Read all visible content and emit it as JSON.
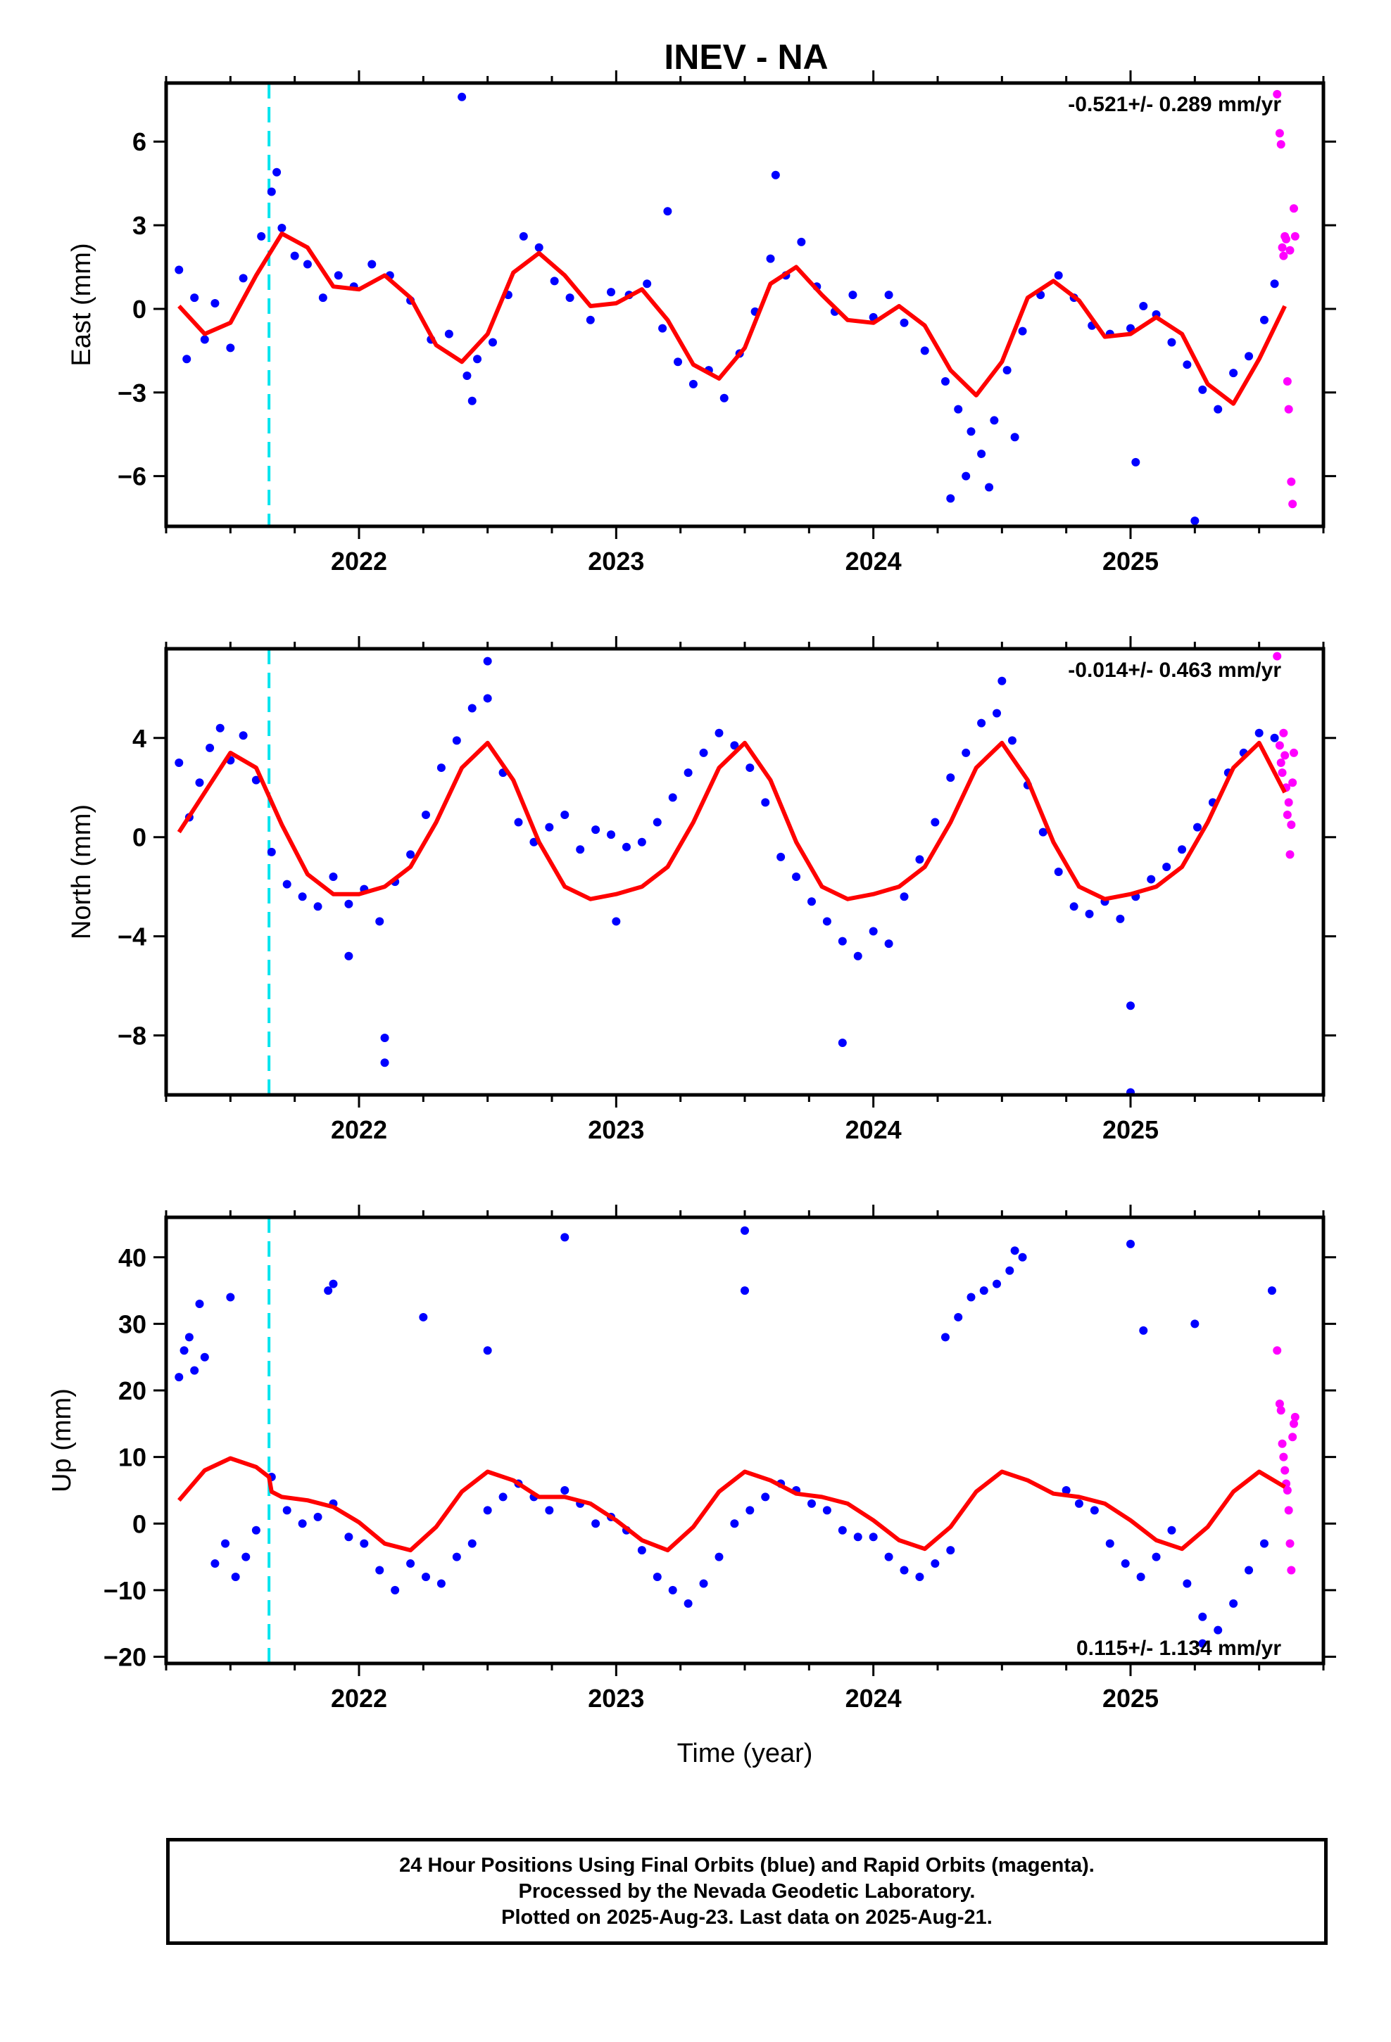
{
  "title": "INEV - NA",
  "footer": {
    "line1": "24 Hour Positions Using Final Orbits (blue) and Rapid Orbits (magenta).",
    "line2": "Processed by the Nevada Geodetic Laboratory.",
    "line3": "Plotted on 2025-Aug-23. Last data on 2025-Aug-21."
  },
  "colors": {
    "final": "#0000ff",
    "rapid": "#ff00ff",
    "model": "#ff0000",
    "event": "#00e5ee"
  },
  "chart_data": [
    {
      "type": "scatter",
      "ylabel": "East (mm)",
      "xlabel": "",
      "rate": "-0.521+/- 0.289 mm/yr",
      "xlim": [
        2021.25,
        2025.75
      ],
      "ylim": [
        -7.8,
        8.1
      ],
      "xticks": [
        2022,
        2023,
        2024,
        2025
      ],
      "yticks": [
        6,
        3,
        0,
        -3,
        -6
      ],
      "event_line": 2021.65,
      "model": {
        "x": [
          2021.3,
          2021.4,
          2021.5,
          2021.6,
          2021.7,
          2021.8,
          2021.9,
          2022.0,
          2022.1,
          2022.2,
          2022.3,
          2022.4,
          2022.5,
          2022.6,
          2022.7,
          2022.8,
          2022.9,
          2023.0,
          2023.1,
          2023.2,
          2023.3,
          2023.4,
          2023.5,
          2023.6,
          2023.7,
          2023.8,
          2023.9,
          2024.0,
          2024.1,
          2024.2,
          2024.3,
          2024.4,
          2024.5,
          2024.6,
          2024.7,
          2024.8,
          2024.9,
          2025.0,
          2025.1,
          2025.2,
          2025.3,
          2025.4,
          2025.5,
          2025.6
        ],
        "y": [
          0.1,
          -0.9,
          -0.5,
          1.2,
          2.7,
          2.2,
          0.8,
          0.7,
          1.2,
          0.4,
          -1.3,
          -1.9,
          -0.9,
          1.3,
          2.0,
          1.2,
          0.1,
          0.2,
          0.7,
          -0.4,
          -2.0,
          -2.5,
          -1.4,
          0.9,
          1.5,
          0.5,
          -0.4,
          -0.5,
          0.1,
          -0.6,
          -2.2,
          -3.1,
          -1.9,
          0.4,
          1.0,
          0.3,
          -1.0,
          -0.9,
          -0.3,
          -0.9,
          -2.7,
          -3.4,
          -1.8,
          0.1
        ]
      },
      "series": [
        {
          "x": [
            2021.3,
            2021.33,
            2021.36,
            2021.4,
            2021.44,
            2021.5,
            2021.55,
            2021.62,
            2021.66,
            2021.7,
            2021.75,
            2021.8,
            2021.86,
            2021.92,
            2021.98,
            2022.05,
            2022.12,
            2022.2,
            2022.28,
            2022.35,
            2022.42,
            2022.46,
            2022.52,
            2022.58,
            2022.64,
            2022.7,
            2022.76,
            2022.82,
            2022.9,
            2022.98,
            2023.05,
            2023.12,
            2023.18,
            2023.24,
            2023.3,
            2023.36,
            2023.42,
            2023.48,
            2023.54,
            2023.6,
            2023.66,
            2023.72,
            2023.78,
            2023.85,
            2023.92,
            2024.0,
            2024.06,
            2024.12,
            2024.2,
            2024.28,
            2024.33,
            2024.38,
            2024.42,
            2024.47,
            2024.52,
            2024.58,
            2024.65,
            2024.72,
            2024.78,
            2024.85,
            2024.92,
            2025.0,
            2025.05,
            2025.1,
            2025.16,
            2025.22,
            2025.28,
            2025.34,
            2025.4,
            2025.46,
            2025.52,
            2025.56,
            2022.4,
            2022.44,
            2023.2,
            2021.68,
            2024.3,
            2024.45,
            2025.25,
            2024.36,
            2024.55,
            2025.02,
            2023.62
          ],
          "y": [
            1.4,
            -1.8,
            0.4,
            -1.1,
            0.2,
            -1.4,
            1.1,
            2.6,
            4.2,
            2.9,
            1.9,
            1.6,
            0.4,
            1.2,
            0.8,
            1.6,
            1.2,
            0.3,
            -1.1,
            -0.9,
            -2.4,
            -1.8,
            -1.2,
            0.5,
            2.6,
            2.2,
            1.0,
            0.4,
            -0.4,
            0.6,
            0.5,
            0.9,
            -0.7,
            -1.9,
            -2.7,
            -2.2,
            -3.2,
            -1.6,
            -0.1,
            1.8,
            1.2,
            2.4,
            0.8,
            -0.1,
            0.5,
            -0.3,
            0.5,
            -0.5,
            -1.5,
            -2.6,
            -3.6,
            -4.4,
            -5.2,
            -4.0,
            -2.2,
            -0.8,
            0.5,
            1.2,
            0.4,
            -0.6,
            -0.9,
            -0.7,
            0.1,
            -0.2,
            -1.2,
            -2.0,
            -2.9,
            -3.6,
            -2.3,
            -1.7,
            -0.4,
            0.9,
            7.6,
            -3.3,
            3.5,
            4.9,
            -6.8,
            -6.4,
            -7.6,
            -6.0,
            -4.6,
            -5.5,
            4.8
          ]
        },
        {
          "x": [
            2025.57,
            2025.58,
            2025.585,
            2025.59,
            2025.595,
            2025.6,
            2025.605,
            2025.61,
            2025.615,
            2025.62,
            2025.625,
            2025.63,
            2025.635,
            2025.64
          ],
          "y": [
            7.7,
            6.3,
            5.9,
            2.2,
            1.9,
            2.6,
            2.5,
            -2.6,
            -3.6,
            2.1,
            -6.2,
            -7.0,
            3.6,
            2.6
          ]
        }
      ]
    },
    {
      "type": "scatter",
      "ylabel": "North (mm)",
      "xlabel": "",
      "rate": "-0.014+/- 0.463 mm/yr",
      "xlim": [
        2021.25,
        2025.75
      ],
      "ylim": [
        -10.4,
        7.6
      ],
      "xticks": [
        2022,
        2023,
        2024,
        2025
      ],
      "yticks": [
        4,
        0,
        -4,
        -8
      ],
      "event_line": 2021.65,
      "model": {
        "x": [
          2021.3,
          2021.4,
          2021.5,
          2021.6,
          2021.7,
          2021.8,
          2021.9,
          2022.0,
          2022.1,
          2022.2,
          2022.3,
          2022.4,
          2022.5,
          2022.6,
          2022.7,
          2022.8,
          2022.9,
          2023.0,
          2023.1,
          2023.2,
          2023.3,
          2023.4,
          2023.5,
          2023.6,
          2023.7,
          2023.8,
          2023.9,
          2024.0,
          2024.1,
          2024.2,
          2024.3,
          2024.4,
          2024.5,
          2024.6,
          2024.7,
          2024.8,
          2024.9,
          2025.0,
          2025.1,
          2025.2,
          2025.3,
          2025.4,
          2025.5,
          2025.6
        ],
        "y": [
          0.2,
          1.8,
          3.4,
          2.8,
          0.5,
          -1.5,
          -2.3,
          -2.3,
          -2.0,
          -1.2,
          0.6,
          2.8,
          3.8,
          2.3,
          -0.2,
          -2.0,
          -2.5,
          -2.3,
          -2.0,
          -1.2,
          0.6,
          2.8,
          3.8,
          2.3,
          -0.2,
          -2.0,
          -2.5,
          -2.3,
          -2.0,
          -1.2,
          0.6,
          2.8,
          3.8,
          2.3,
          -0.2,
          -2.0,
          -2.5,
          -2.3,
          -2.0,
          -1.2,
          0.6,
          2.8,
          3.8,
          1.8
        ]
      },
      "series": [
        {
          "x": [
            2021.3,
            2021.34,
            2021.38,
            2021.42,
            2021.46,
            2021.5,
            2021.55,
            2021.6,
            2021.66,
            2021.72,
            2021.78,
            2021.84,
            2021.9,
            2021.96,
            2022.02,
            2022.08,
            2022.14,
            2022.2,
            2022.26,
            2022.32,
            2022.38,
            2022.44,
            2022.5,
            2022.56,
            2022.62,
            2022.68,
            2022.74,
            2022.8,
            2022.86,
            2022.92,
            2022.98,
            2023.04,
            2023.1,
            2023.16,
            2023.22,
            2023.28,
            2023.34,
            2023.4,
            2023.46,
            2023.52,
            2023.58,
            2023.64,
            2023.7,
            2023.76,
            2023.82,
            2023.88,
            2023.94,
            2024.0,
            2024.06,
            2024.12,
            2024.18,
            2024.24,
            2024.3,
            2024.36,
            2024.42,
            2024.48,
            2024.54,
            2024.6,
            2024.66,
            2024.72,
            2024.78,
            2024.84,
            2024.9,
            2024.96,
            2025.02,
            2025.08,
            2025.14,
            2025.2,
            2025.26,
            2025.32,
            2025.38,
            2025.44,
            2025.5,
            2025.56,
            2022.1,
            2022.1,
            2021.96,
            2022.5,
            2023.88,
            2025.0,
            2025.0,
            2024.5,
            2023.0
          ],
          "y": [
            3.0,
            0.8,
            2.2,
            3.6,
            4.4,
            3.1,
            4.1,
            2.3,
            -0.6,
            -1.9,
            -2.4,
            -2.8,
            -1.6,
            -2.7,
            -2.1,
            -3.4,
            -1.8,
            -0.7,
            0.9,
            2.8,
            3.9,
            5.2,
            5.6,
            2.6,
            0.6,
            -0.2,
            0.4,
            0.9,
            -0.5,
            0.3,
            0.1,
            -0.4,
            -0.2,
            0.6,
            1.6,
            2.6,
            3.4,
            4.2,
            3.7,
            2.8,
            1.4,
            -0.8,
            -1.6,
            -2.6,
            -3.4,
            -4.2,
            -4.8,
            -3.8,
            -4.3,
            -2.4,
            -0.9,
            0.6,
            2.4,
            3.4,
            4.6,
            5.0,
            3.9,
            2.1,
            0.2,
            -1.4,
            -2.8,
            -3.1,
            -2.6,
            -3.3,
            -2.4,
            -1.7,
            -1.2,
            -0.5,
            0.4,
            1.4,
            2.6,
            3.4,
            4.2,
            4.0,
            -8.1,
            -9.1,
            -4.8,
            7.1,
            -8.3,
            -6.8,
            -10.3,
            6.3,
            -3.4
          ]
        },
        {
          "x": [
            2025.57,
            2025.58,
            2025.585,
            2025.59,
            2025.595,
            2025.6,
            2025.605,
            2025.61,
            2025.615,
            2025.62,
            2025.625,
            2025.63,
            2025.635
          ],
          "y": [
            7.3,
            3.7,
            3.0,
            2.6,
            4.2,
            3.3,
            2.0,
            0.9,
            1.4,
            -0.7,
            0.5,
            2.2,
            3.4
          ]
        }
      ]
    },
    {
      "type": "scatter",
      "ylabel": "Up (mm)",
      "xlabel": "Time (year)",
      "rate": "0.115+/- 1.134 mm/yr",
      "xlim": [
        2021.25,
        2025.75
      ],
      "ylim": [
        -21,
        46
      ],
      "xticks": [
        2022,
        2023,
        2024,
        2025
      ],
      "yticks": [
        40,
        30,
        20,
        10,
        0,
        -10,
        -20
      ],
      "event_line": 2021.65,
      "model": {
        "x": [
          2021.3,
          2021.4,
          2021.5,
          2021.6,
          2021.65,
          2021.66,
          2021.7,
          2021.8,
          2021.9,
          2022.0,
          2022.1,
          2022.2,
          2022.3,
          2022.4,
          2022.5,
          2022.6,
          2022.7,
          2022.8,
          2022.9,
          2023.0,
          2023.1,
          2023.2,
          2023.3,
          2023.4,
          2023.5,
          2023.6,
          2023.7,
          2023.8,
          2023.9,
          2024.0,
          2024.1,
          2024.2,
          2024.3,
          2024.4,
          2024.5,
          2024.6,
          2024.7,
          2024.8,
          2024.9,
          2025.0,
          2025.1,
          2025.2,
          2025.3,
          2025.4,
          2025.5,
          2025.6
        ],
        "y": [
          3.5,
          8.0,
          9.8,
          8.5,
          7.0,
          4.8,
          4.0,
          3.5,
          2.5,
          0.2,
          -3.0,
          -4.0,
          -0.5,
          4.8,
          7.8,
          6.5,
          4.0,
          4.0,
          3.0,
          0.5,
          -2.5,
          -4.0,
          -0.5,
          4.8,
          7.8,
          6.5,
          4.5,
          4.0,
          3.0,
          0.5,
          -2.5,
          -3.8,
          -0.5,
          4.8,
          7.8,
          6.5,
          4.5,
          4.0,
          3.0,
          0.5,
          -2.5,
          -3.8,
          -0.5,
          4.8,
          7.8,
          5.5
        ]
      },
      "series": [
        {
          "x": [
            2021.3,
            2021.32,
            2021.34,
            2021.36,
            2021.4,
            2021.44,
            2021.48,
            2021.52,
            2021.56,
            2021.6,
            2021.66,
            2021.72,
            2021.78,
            2021.84,
            2021.9,
            2021.96,
            2022.02,
            2022.08,
            2022.14,
            2022.2,
            2022.26,
            2022.32,
            2022.38,
            2022.44,
            2022.5,
            2022.56,
            2022.62,
            2022.68,
            2022.74,
            2022.8,
            2022.86,
            2022.92,
            2022.98,
            2023.04,
            2023.1,
            2023.16,
            2023.22,
            2023.28,
            2023.34,
            2023.4,
            2023.46,
            2023.52,
            2023.58,
            2023.64,
            2023.7,
            2023.76,
            2023.82,
            2023.88,
            2023.94,
            2024.0,
            2024.06,
            2024.12,
            2024.18,
            2024.24,
            2024.3,
            2024.28,
            2024.33,
            2024.38,
            2024.43,
            2024.48,
            2024.53,
            2024.58,
            2024.75,
            2024.8,
            2024.86,
            2024.92,
            2024.98,
            2025.04,
            2025.1,
            2025.16,
            2025.22,
            2025.28,
            2025.34,
            2025.4,
            2025.46,
            2025.52,
            2021.9,
            2021.88,
            2022.25,
            2022.5,
            2022.8,
            2023.5,
            2023.5,
            2025.0,
            2025.05,
            2025.25,
            2025.55,
            2024.55,
            2025.28,
            2021.5,
            2021.38
          ],
          "y": [
            22,
            26,
            28,
            23,
            25,
            -6,
            -3,
            -8,
            -5,
            -1,
            7,
            2,
            0,
            1,
            3,
            -2,
            -3,
            -7,
            -10,
            -6,
            -8,
            -9,
            -5,
            -3,
            2,
            4,
            6,
            4,
            2,
            5,
            3,
            0,
            1,
            -1,
            -4,
            -8,
            -10,
            -12,
            -9,
            -5,
            0,
            2,
            4,
            6,
            5,
            3,
            2,
            -1,
            -2,
            -2,
            -5,
            -7,
            -8,
            -6,
            -4,
            28,
            31,
            34,
            35,
            36,
            38,
            40,
            5,
            3,
            2,
            -3,
            -6,
            -8,
            -5,
            -1,
            -9,
            -14,
            -16,
            -12,
            -7,
            -3,
            36,
            35,
            31,
            26,
            43,
            44,
            35,
            42,
            29,
            30,
            35,
            41,
            -18,
            34,
            33
          ]
        },
        {
          "x": [
            2025.57,
            2025.58,
            2025.585,
            2025.59,
            2025.595,
            2025.6,
            2025.605,
            2025.61,
            2025.615,
            2025.62,
            2025.625,
            2025.63,
            2025.635,
            2025.64
          ],
          "y": [
            26,
            18,
            17,
            12,
            10,
            8,
            6,
            5,
            2,
            -3,
            -7,
            13,
            15,
            16
          ]
        }
      ]
    }
  ]
}
